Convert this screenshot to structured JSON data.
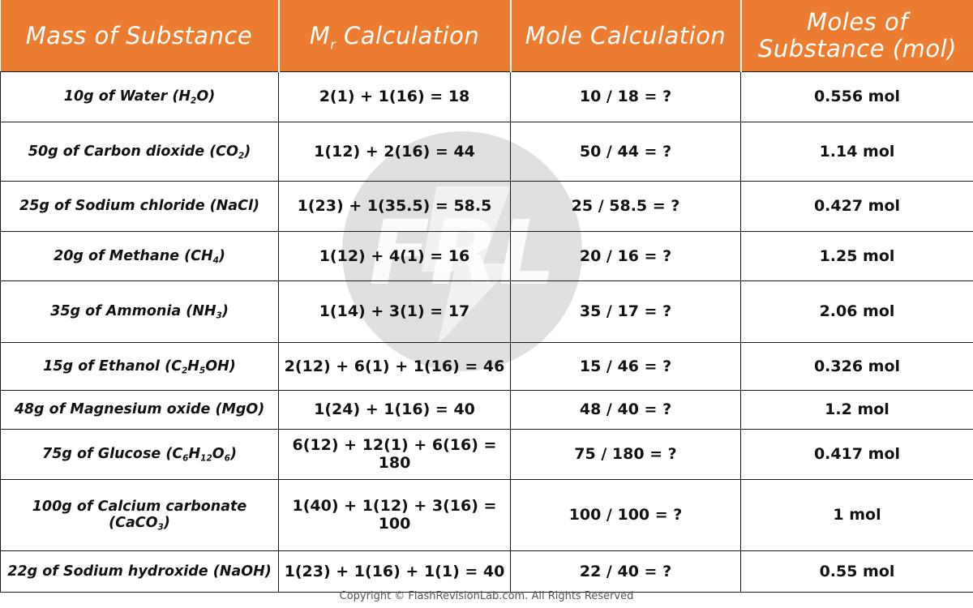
{
  "header": {
    "col1": "Mass of Substance",
    "col2_main": "M",
    "col2_sub": "r",
    "col2_rest": " Calculation",
    "col3": "Mole Calculation",
    "col4_line1": "Moles of",
    "col4_line2": "Substance (mol)"
  },
  "rows": [
    {
      "mass": [
        {
          "t": "10g of Water (H"
        },
        {
          "sub": "2"
        },
        {
          "t": "O)"
        }
      ],
      "mr": "2(1) + 1(16) = 18",
      "mole_calc": "10 / 18 = ?",
      "moles": "0.556 mol"
    },
    {
      "mass": [
        {
          "t": "50g of Carbon dioxide (CO"
        },
        {
          "sub": "2"
        },
        {
          "t": ")"
        }
      ],
      "mr": "1(12) + 2(16) = 44",
      "mole_calc": "50 / 44  = ?",
      "moles": "1.14 mol"
    },
    {
      "mass": [
        {
          "t": "25g of Sodium chloride (NaCl)"
        }
      ],
      "mr": "1(23) + 1(35.5) = 58.5",
      "mole_calc": "25  / 58.5 = ?",
      "moles": "0.427 mol"
    },
    {
      "mass": [
        {
          "t": "20g of Methane (CH"
        },
        {
          "sub": "4"
        },
        {
          "t": ")"
        }
      ],
      "mr": "1(12) + 4(1) = 16",
      "mole_calc": "20 / 16 = ?",
      "moles": "1.25 mol"
    },
    {
      "mass": [
        {
          "t": "35g of Ammonia (NH"
        },
        {
          "sub": "3"
        },
        {
          "t": ")"
        }
      ],
      "mr": "1(14) + 3(1) = 17",
      "mole_calc": "35 / 17 = ?",
      "moles": "2.06 mol"
    },
    {
      "mass": [
        {
          "t": "15g of Ethanol (C"
        },
        {
          "sub": "2"
        },
        {
          "t": "H"
        },
        {
          "sub": "5"
        },
        {
          "t": "OH)"
        }
      ],
      "mr": "2(12) + 6(1) + 1(16) = 46",
      "mole_calc": "15 / 46 = ?",
      "moles": "0.326 mol"
    },
    {
      "mass": [
        {
          "t": "48g of Magnesium oxide (MgO)"
        }
      ],
      "mr": "1(24) + 1(16) = 40",
      "mole_calc": "48 / 40 = ?",
      "moles": "1.2 mol"
    },
    {
      "mass": [
        {
          "t": "75g of Glucose (C"
        },
        {
          "sub": "6"
        },
        {
          "t": "H"
        },
        {
          "sub": "12"
        },
        {
          "t": "O"
        },
        {
          "sub": "6"
        },
        {
          "t": ")"
        }
      ],
      "mr": "6(12) + 12(1) + 6(16) = 180",
      "mole_calc": "75 / 180 = ?",
      "moles": "0.417 mol"
    },
    {
      "mass": [
        {
          "t": "100g of Calcium carbonate (CaCO"
        },
        {
          "sub": "3"
        },
        {
          "t": ")"
        }
      ],
      "mr": "1(40) + 1(12) + 3(16) = 100",
      "mole_calc": "100 / 100 = ?",
      "moles": "1 mol"
    },
    {
      "mass": [
        {
          "t": "22g of Sodium hydroxide (NaOH)"
        }
      ],
      "mr": "1(23) + 1(16) + 1(1) = 40",
      "mole_calc": "22 / 40 = ?",
      "moles": "0.55 mol"
    }
  ],
  "watermark_text": "FRL",
  "footer": "Copyright © FlashRevisionLab.com. All Rights Reserved",
  "colors": {
    "header_bg": "#ec7c30",
    "header_text": "#ffffff",
    "grid": "#1a1a1a",
    "watermark": "#d8d8d8"
  }
}
